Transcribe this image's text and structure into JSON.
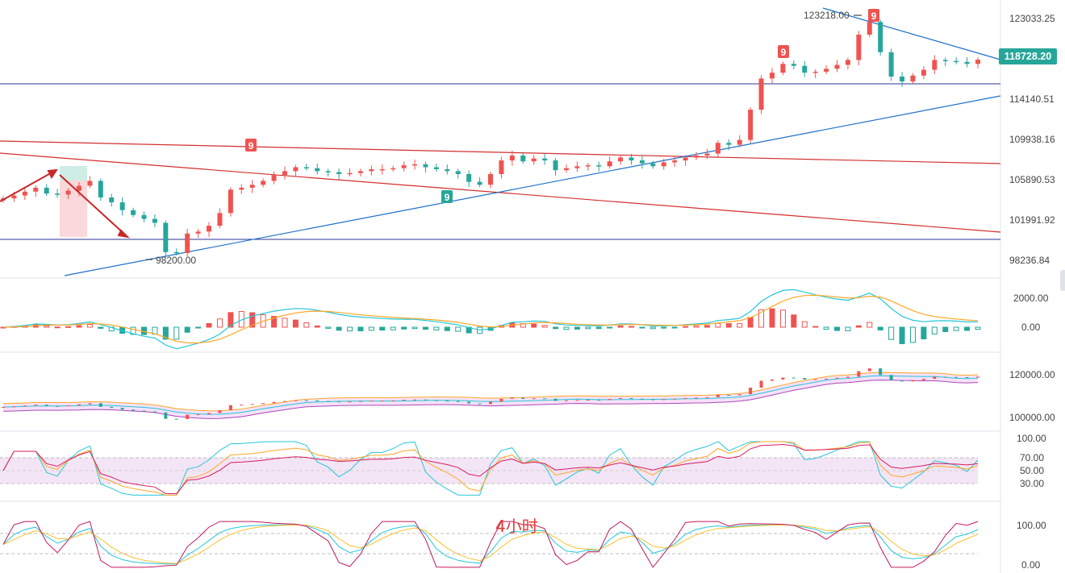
{
  "timeframe_label": "4小时",
  "colors": {
    "up": "#ef5350",
    "down": "#26a69a",
    "trend_red": "#d32f2f",
    "trend_blue": "#1e6fc9",
    "level": "#283593",
    "rsi_zone": "#f3e5f5"
  },
  "current_price": "118728.20",
  "chart_data": [
    {
      "type": "candlestick",
      "panel": "price",
      "y_axis_labels": [
        "123033.25",
        "118728.20",
        "114140.51",
        "109938.16",
        "105890.53",
        "101991.92",
        "98236.84"
      ],
      "annotations": [
        {
          "text": "123218.00",
          "kind": "high-marker"
        },
        {
          "text": "98200.00",
          "kind": "low-marker"
        },
        {
          "text": "9",
          "kind": "td-sequential",
          "color": "#ef5350"
        },
        {
          "text": "9",
          "kind": "td-sequential",
          "color": "#ef5350"
        },
        {
          "text": "9",
          "kind": "td-sequential",
          "color": "#ef5350"
        },
        {
          "text": "9",
          "kind": "td-sequential",
          "color": "#26a69a"
        }
      ],
      "horizontal_levels": [
        115600,
        100500
      ],
      "close_series": [
        104500,
        104800,
        105200,
        105600,
        105000,
        104900,
        105300,
        105800,
        106300,
        104600,
        104100,
        103300,
        102800,
        102400,
        102000,
        99000,
        98900,
        100900,
        101100,
        101700,
        103000,
        105400,
        105600,
        105900,
        106300,
        106900,
        107300,
        107700,
        107600,
        107300,
        107200,
        107000,
        107100,
        107300,
        107500,
        107500,
        107600,
        107900,
        108000,
        107700,
        107500,
        107300,
        107000,
        106200,
        105900,
        107000,
        108400,
        108900,
        108300,
        108600,
        108400,
        107400,
        107600,
        107800,
        107900,
        107800,
        108300,
        108700,
        108400,
        108100,
        107800,
        108200,
        108400,
        108700,
        108900,
        109100,
        110200,
        110000,
        110500,
        113600,
        116800,
        117400,
        118300,
        118100,
        117400,
        117500,
        117800,
        118200,
        118700,
        121300,
        122600,
        119500,
        117000,
        116500,
        117100,
        117700,
        118700,
        118600,
        118500,
        118300,
        118728
      ]
    },
    {
      "type": "histogram",
      "panel": "macd",
      "y_axis_labels": [
        "2000.00",
        "0.00"
      ]
    },
    {
      "type": "line",
      "panel": "bollinger",
      "y_axis_labels": [
        "120000.00",
        "100000.00"
      ]
    },
    {
      "type": "line",
      "panel": "rsi",
      "y_axis_labels": [
        "100.00",
        "70.00",
        "50.00",
        "30.00"
      ]
    },
    {
      "type": "line",
      "panel": "kdj",
      "y_axis_labels": [
        "100.00",
        "0.00"
      ]
    }
  ]
}
